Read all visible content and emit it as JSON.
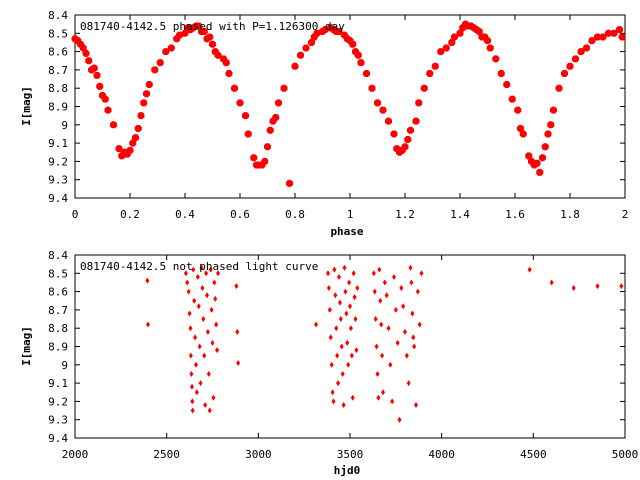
{
  "chart_data": [
    {
      "type": "scatter",
      "title": "081740-4142.5 phased with P=1.126300 day",
      "xlabel": "phase",
      "ylabel": "I[mag]",
      "xlim": [
        0,
        2
      ],
      "ylim": [
        9.4,
        8.4
      ],
      "y_inverted": true,
      "xticks": [
        "0",
        "0.2",
        "0.4",
        "0.6",
        "0.8",
        "1",
        "1.2",
        "1.4",
        "1.6",
        "1.8",
        "2"
      ],
      "yticks": [
        "8.4",
        "8.5",
        "8.6",
        "8.7",
        "8.8",
        "8.9",
        "9",
        "9.1",
        "9.2",
        "9.3",
        "9.4"
      ],
      "marker_color": "#ff0000",
      "points": [
        [
          0.0,
          8.53
        ],
        [
          0.01,
          8.54
        ],
        [
          0.02,
          8.56
        ],
        [
          0.03,
          8.58
        ],
        [
          0.04,
          8.61
        ],
        [
          0.05,
          8.65
        ],
        [
          0.06,
          8.7
        ],
        [
          0.07,
          8.69
        ],
        [
          0.08,
          8.73
        ],
        [
          0.09,
          8.79
        ],
        [
          0.1,
          8.84
        ],
        [
          0.11,
          8.86
        ],
        [
          0.12,
          8.92
        ],
        [
          0.14,
          9.0
        ],
        [
          0.16,
          9.13
        ],
        [
          0.17,
          9.17
        ],
        [
          0.18,
          9.15
        ],
        [
          0.19,
          9.16
        ],
        [
          0.2,
          9.14
        ],
        [
          0.21,
          9.1
        ],
        [
          0.22,
          9.07
        ],
        [
          0.23,
          9.02
        ],
        [
          0.24,
          8.95
        ],
        [
          0.25,
          8.88
        ],
        [
          0.26,
          8.83
        ],
        [
          0.27,
          8.78
        ],
        [
          0.29,
          8.7
        ],
        [
          0.31,
          8.66
        ],
        [
          0.33,
          8.6
        ],
        [
          0.35,
          8.58
        ],
        [
          0.37,
          8.53
        ],
        [
          0.38,
          8.51
        ],
        [
          0.4,
          8.5
        ],
        [
          0.41,
          8.47
        ],
        [
          0.42,
          8.48
        ],
        [
          0.43,
          8.47
        ],
        [
          0.44,
          8.46
        ],
        [
          0.45,
          8.46
        ],
        [
          0.46,
          8.49
        ],
        [
          0.47,
          8.49
        ],
        [
          0.48,
          8.53
        ],
        [
          0.49,
          8.52
        ],
        [
          0.5,
          8.56
        ],
        [
          0.51,
          8.6
        ],
        [
          0.52,
          8.62
        ],
        [
          0.54,
          8.64
        ],
        [
          0.55,
          8.66
        ],
        [
          0.56,
          8.72
        ],
        [
          0.58,
          8.8
        ],
        [
          0.6,
          8.88
        ],
        [
          0.62,
          8.95
        ],
        [
          0.63,
          9.05
        ],
        [
          0.65,
          9.18
        ],
        [
          0.66,
          9.22
        ],
        [
          0.67,
          9.22
        ],
        [
          0.68,
          9.22
        ],
        [
          0.69,
          9.2
        ],
        [
          0.7,
          9.12
        ],
        [
          0.71,
          9.03
        ],
        [
          0.72,
          8.98
        ],
        [
          0.73,
          8.96
        ],
        [
          0.74,
          8.88
        ],
        [
          0.76,
          8.8
        ],
        [
          0.78,
          9.32
        ],
        [
          0.8,
          8.68
        ],
        [
          0.82,
          8.62
        ],
        [
          0.84,
          8.58
        ],
        [
          0.86,
          8.55
        ],
        [
          0.87,
          8.52
        ],
        [
          0.88,
          8.5
        ],
        [
          0.9,
          8.49
        ],
        [
          0.91,
          8.48
        ],
        [
          0.93,
          8.47
        ],
        [
          0.94,
          8.48
        ],
        [
          0.95,
          8.49
        ],
        [
          0.96,
          8.49
        ],
        [
          0.98,
          8.51
        ],
        [
          0.99,
          8.53
        ],
        [
          1.0,
          8.54
        ],
        [
          1.01,
          8.56
        ],
        [
          1.02,
          8.6
        ],
        [
          1.03,
          8.62
        ],
        [
          1.04,
          8.66
        ],
        [
          1.06,
          8.72
        ],
        [
          1.08,
          8.8
        ],
        [
          1.1,
          8.88
        ],
        [
          1.12,
          8.92
        ],
        [
          1.14,
          8.98
        ],
        [
          1.16,
          9.05
        ],
        [
          1.17,
          9.13
        ],
        [
          1.18,
          9.15
        ],
        [
          1.19,
          9.14
        ],
        [
          1.2,
          9.12
        ],
        [
          1.21,
          9.08
        ],
        [
          1.22,
          9.03
        ],
        [
          1.24,
          8.98
        ],
        [
          1.25,
          8.88
        ],
        [
          1.27,
          8.8
        ],
        [
          1.29,
          8.72
        ],
        [
          1.31,
          8.68
        ],
        [
          1.33,
          8.6
        ],
        [
          1.35,
          8.58
        ],
        [
          1.37,
          8.55
        ],
        [
          1.38,
          8.52
        ],
        [
          1.4,
          8.5
        ],
        [
          1.41,
          8.47
        ],
        [
          1.42,
          8.45
        ],
        [
          1.43,
          8.46
        ],
        [
          1.44,
          8.46
        ],
        [
          1.45,
          8.47
        ],
        [
          1.46,
          8.48
        ],
        [
          1.47,
          8.49
        ],
        [
          1.48,
          8.52
        ],
        [
          1.49,
          8.52
        ],
        [
          1.5,
          8.54
        ],
        [
          1.51,
          8.58
        ],
        [
          1.53,
          8.64
        ],
        [
          1.55,
          8.72
        ],
        [
          1.57,
          8.78
        ],
        [
          1.59,
          8.86
        ],
        [
          1.61,
          8.92
        ],
        [
          1.62,
          9.02
        ],
        [
          1.63,
          9.05
        ],
        [
          1.65,
          9.17
        ],
        [
          1.66,
          9.2
        ],
        [
          1.67,
          9.22
        ],
        [
          1.68,
          9.21
        ],
        [
          1.69,
          9.26
        ],
        [
          1.7,
          9.18
        ],
        [
          1.71,
          9.12
        ],
        [
          1.72,
          9.05
        ],
        [
          1.73,
          9.0
        ],
        [
          1.74,
          8.92
        ],
        [
          1.76,
          8.8
        ],
        [
          1.78,
          8.72
        ],
        [
          1.8,
          8.68
        ],
        [
          1.82,
          8.64
        ],
        [
          1.84,
          8.6
        ],
        [
          1.86,
          8.58
        ],
        [
          1.88,
          8.54
        ],
        [
          1.9,
          8.52
        ],
        [
          1.92,
          8.52
        ],
        [
          1.94,
          8.5
        ],
        [
          1.96,
          8.5
        ],
        [
          1.98,
          8.48
        ],
        [
          1.99,
          8.52
        ]
      ]
    },
    {
      "type": "scatter",
      "title": "081740-4142.5 not phased light curve",
      "xlabel": "hjd0",
      "ylabel": "I[mag]",
      "xlim": [
        2000,
        5000
      ],
      "ylim": [
        9.4,
        8.4
      ],
      "y_inverted": true,
      "xticks": [
        "2000",
        "2500",
        "3000",
        "3500",
        "4000",
        "4500",
        "5000"
      ],
      "yticks": [
        "8.4",
        "8.5",
        "8.6",
        "8.7",
        "8.8",
        "8.9",
        "9",
        "9.1",
        "9.2",
        "9.3",
        "9.4"
      ],
      "marker_color": "#ff0000",
      "points": [
        [
          2395,
          8.54
        ],
        [
          2398,
          8.78
        ],
        [
          2605,
          8.5
        ],
        [
          2612,
          8.55
        ],
        [
          2620,
          8.6
        ],
        [
          2625,
          8.72
        ],
        [
          2630,
          8.8
        ],
        [
          2632,
          8.95
        ],
        [
          2635,
          9.05
        ],
        [
          2638,
          9.12
        ],
        [
          2640,
          9.2
        ],
        [
          2642,
          9.25
        ],
        [
          2645,
          8.48
        ],
        [
          2650,
          8.65
        ],
        [
          2655,
          8.85
        ],
        [
          2660,
          9.0
        ],
        [
          2665,
          9.15
        ],
        [
          2670,
          8.52
        ],
        [
          2675,
          8.68
        ],
        [
          2680,
          8.9
        ],
        [
          2685,
          9.1
        ],
        [
          2690,
          8.47
        ],
        [
          2695,
          8.58
        ],
        [
          2700,
          8.75
        ],
        [
          2705,
          8.95
        ],
        [
          2710,
          9.22
        ],
        [
          2715,
          8.5
        ],
        [
          2720,
          8.62
        ],
        [
          2725,
          8.82
        ],
        [
          2730,
          9.05
        ],
        [
          2735,
          9.25
        ],
        [
          2740,
          8.48
        ],
        [
          2745,
          8.7
        ],
        [
          2750,
          8.88
        ],
        [
          2755,
          9.18
        ],
        [
          2760,
          8.55
        ],
        [
          2765,
          8.64
        ],
        [
          2770,
          8.78
        ],
        [
          2775,
          8.92
        ],
        [
          2780,
          8.5
        ],
        [
          2880,
          8.57
        ],
        [
          2885,
          8.82
        ],
        [
          2890,
          8.99
        ],
        [
          3315,
          8.78
        ],
        [
          3380,
          8.5
        ],
        [
          3385,
          8.58
        ],
        [
          3390,
          8.7
        ],
        [
          3395,
          8.85
        ],
        [
          3400,
          9.0
        ],
        [
          3405,
          9.15
        ],
        [
          3410,
          9.2
        ],
        [
          3415,
          8.48
        ],
        [
          3420,
          8.62
        ],
        [
          3425,
          8.8
        ],
        [
          3430,
          8.95
        ],
        [
          3435,
          9.1
        ],
        [
          3440,
          8.52
        ],
        [
          3445,
          8.66
        ],
        [
          3450,
          8.75
        ],
        [
          3455,
          8.9
        ],
        [
          3460,
          9.05
        ],
        [
          3465,
          9.22
        ],
        [
          3470,
          8.47
        ],
        [
          3475,
          8.6
        ],
        [
          3480,
          8.72
        ],
        [
          3485,
          8.88
        ],
        [
          3490,
          9.0
        ],
        [
          3495,
          8.55
        ],
        [
          3500,
          8.68
        ],
        [
          3505,
          8.8
        ],
        [
          3510,
          8.95
        ],
        [
          3515,
          9.18
        ],
        [
          3520,
          8.5
        ],
        [
          3525,
          8.63
        ],
        [
          3530,
          8.75
        ],
        [
          3535,
          8.92
        ],
        [
          3540,
          8.58
        ],
        [
          3630,
          8.5
        ],
        [
          3635,
          8.6
        ],
        [
          3640,
          8.75
        ],
        [
          3645,
          8.9
        ],
        [
          3650,
          9.05
        ],
        [
          3655,
          9.18
        ],
        [
          3660,
          8.48
        ],
        [
          3665,
          8.65
        ],
        [
          3670,
          8.78
        ],
        [
          3675,
          8.95
        ],
        [
          3680,
          9.15
        ],
        [
          3690,
          8.55
        ],
        [
          3700,
          8.62
        ],
        [
          3710,
          8.8
        ],
        [
          3720,
          9.0
        ],
        [
          3730,
          9.2
        ],
        [
          3740,
          8.52
        ],
        [
          3750,
          8.7
        ],
        [
          3760,
          8.88
        ],
        [
          3770,
          9.3
        ],
        [
          3780,
          8.58
        ],
        [
          3790,
          8.68
        ],
        [
          3800,
          8.82
        ],
        [
          3810,
          8.95
        ],
        [
          3820,
          9.1
        ],
        [
          3830,
          8.47
        ],
        [
          3835,
          8.55
        ],
        [
          3840,
          8.72
        ],
        [
          3845,
          8.85
        ],
        [
          3850,
          8.9
        ],
        [
          3860,
          9.22
        ],
        [
          3870,
          8.6
        ],
        [
          3880,
          8.78
        ],
        [
          3890,
          8.5
        ],
        [
          4480,
          8.48
        ],
        [
          4600,
          8.55
        ],
        [
          4720,
          8.58
        ],
        [
          4850,
          8.57
        ],
        [
          4980,
          8.57
        ]
      ]
    }
  ]
}
